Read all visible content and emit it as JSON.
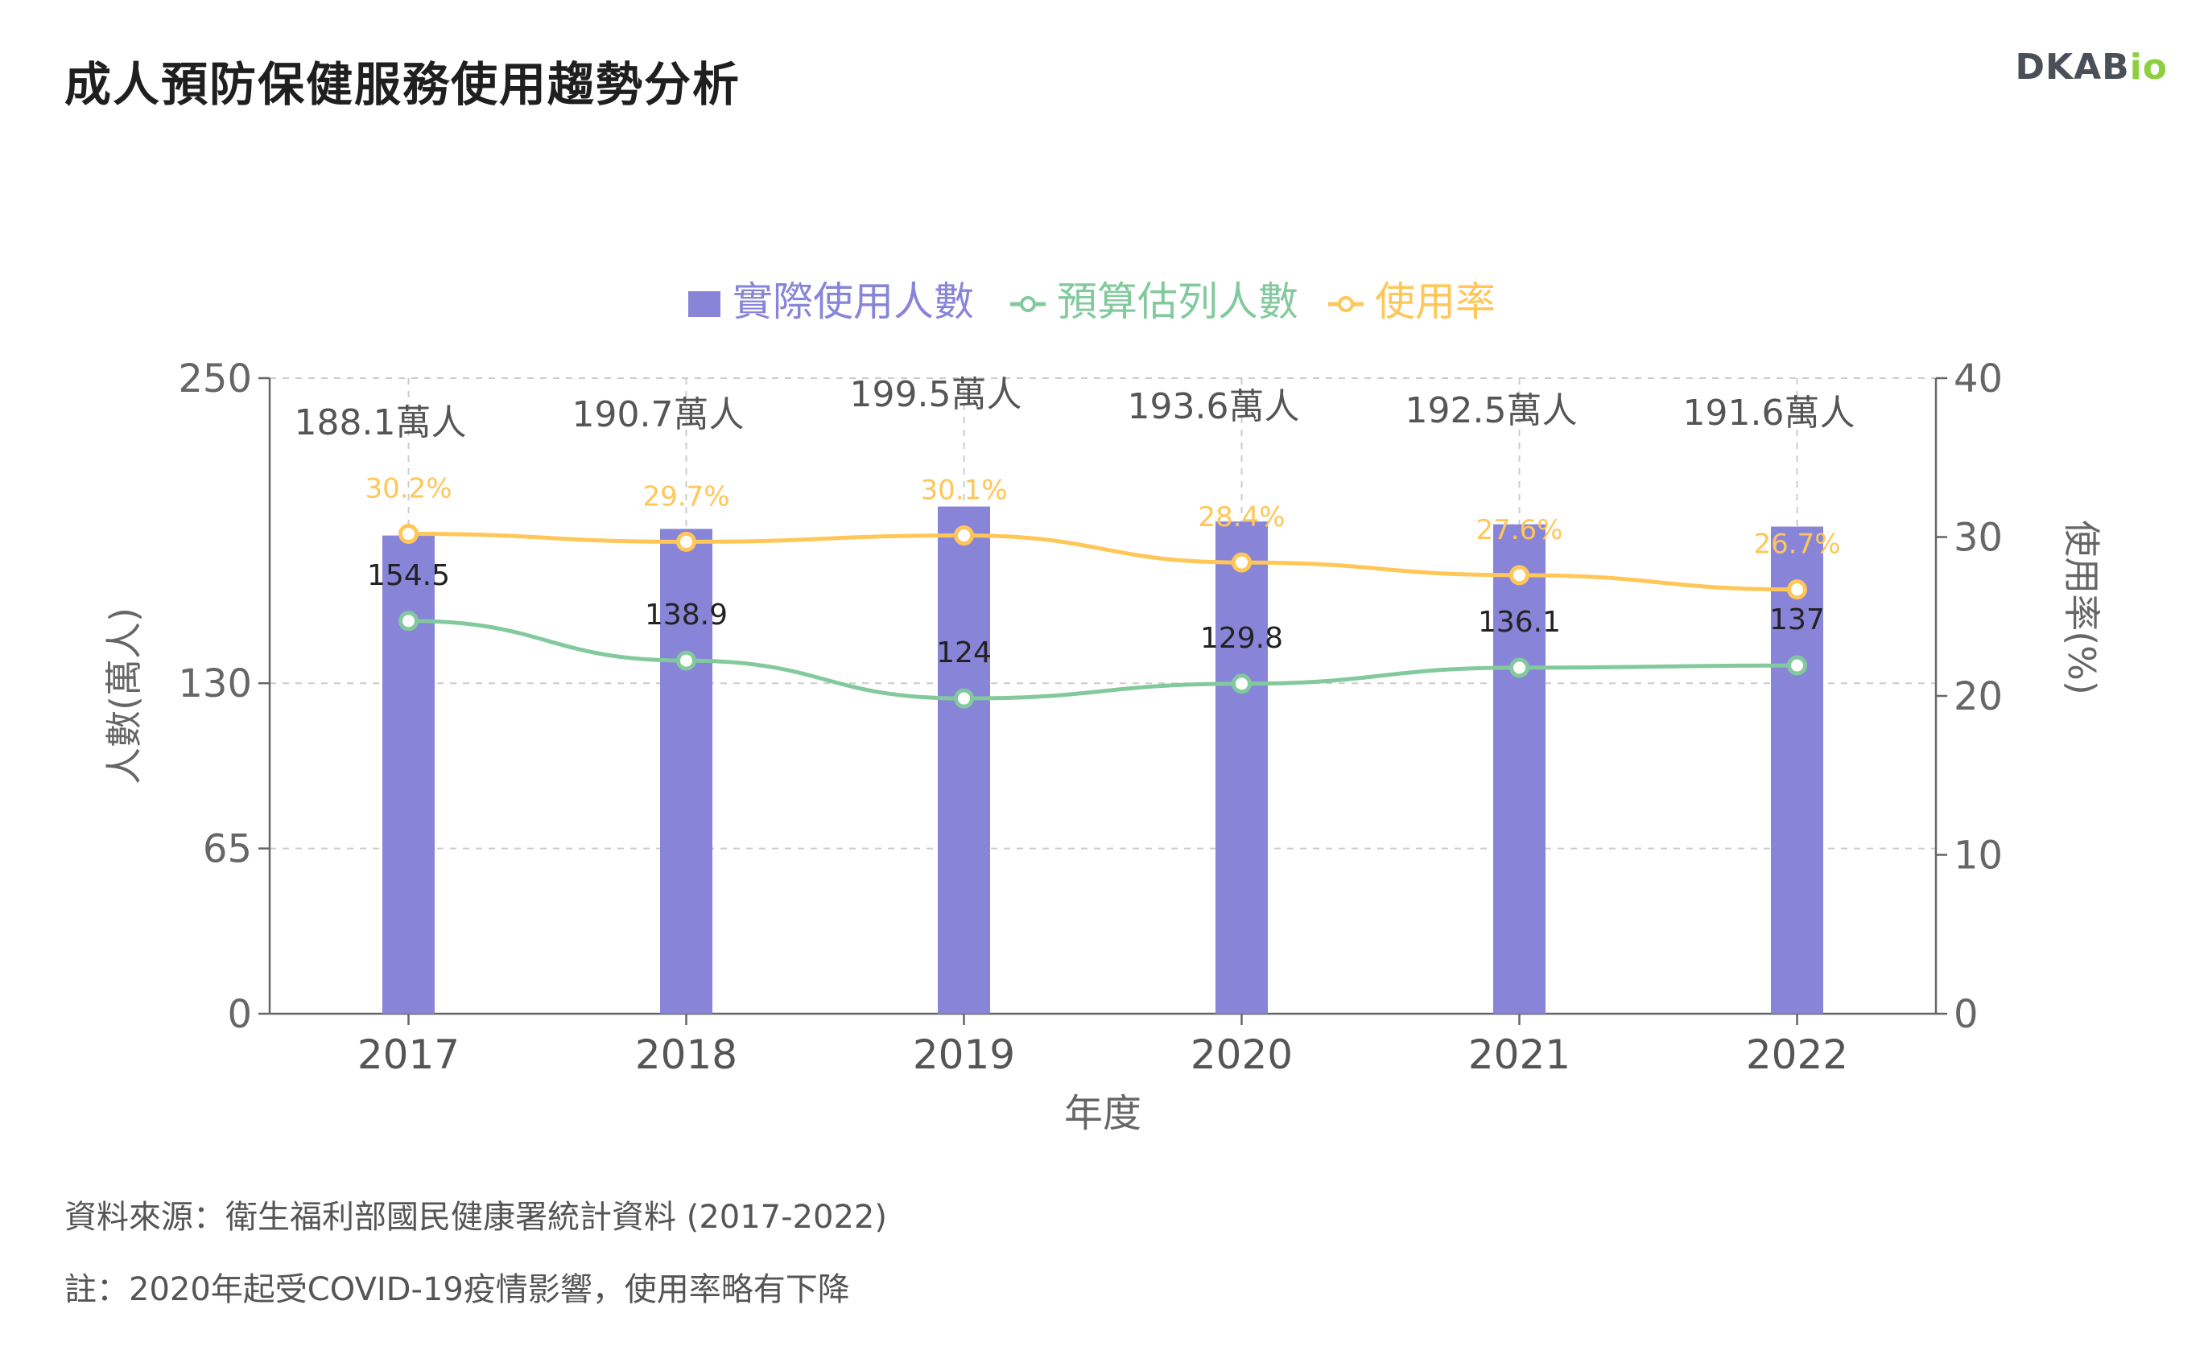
{
  "header": {
    "title": "成人預防保健服務使用趨勢分析",
    "logo_main": "DKAB",
    "logo_accent": "io",
    "logo_accent_color": "#8ccf3f"
  },
  "footer": {
    "source": "資料來源：衛生福利部國民健康署統計資料 (2017-2022)",
    "note": "註：2020年起受COVID-19疫情影響，使用率略有下降"
  },
  "chart_data": {
    "type": "bar",
    "categories": [
      "2017",
      "2018",
      "2019",
      "2020",
      "2021",
      "2022"
    ],
    "xlabel": "年度",
    "ylabel": "人數(萬人)",
    "y2label": "使用率(%)",
    "ylim": [
      0,
      250
    ],
    "yticks": [
      0,
      65,
      130,
      250
    ],
    "y2lim": [
      0,
      40
    ],
    "y2ticks": [
      0,
      10,
      20,
      30,
      40
    ],
    "grid": true,
    "legend": "top-center",
    "series": [
      {
        "name": "實際使用人數",
        "type": "bar",
        "axis": "left",
        "color": "#8884d8",
        "values": [
          188.1,
          190.7,
          199.5,
          193.6,
          192.5,
          191.6
        ],
        "labels": [
          "188.1萬人",
          "190.7萬人",
          "199.5萬人",
          "193.6萬人",
          "192.5萬人",
          "191.6萬人"
        ]
      },
      {
        "name": "預算估列人數",
        "type": "line",
        "axis": "left",
        "color": "#82ca9d",
        "values": [
          154.5,
          138.9,
          124,
          129.8,
          136.1,
          137
        ],
        "labels": [
          "154.5",
          "138.9",
          "124",
          "129.8",
          "136.1",
          "137"
        ]
      },
      {
        "name": "使用率",
        "type": "line",
        "axis": "right",
        "color": "#ffc658",
        "values": [
          30.2,
          29.7,
          30.1,
          28.4,
          27.6,
          26.7
        ],
        "labels": [
          "30.2%",
          "29.7%",
          "30.1%",
          "28.4%",
          "27.6%",
          "26.7%"
        ]
      }
    ]
  }
}
